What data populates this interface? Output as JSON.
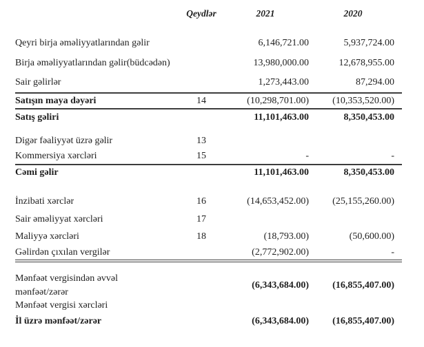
{
  "table": {
    "headers": {
      "notes": "Qeydlər",
      "y2021": "2021",
      "y2020": "2020"
    },
    "rows": [
      {
        "label": "Qeyri birja əməliyyatlarından gəlir",
        "note": "",
        "y2021": "6,146,721.00",
        "y2020": "5,937,724.00"
      },
      {
        "label": "Birja əməliyyatlarından gəlir(büdcədən)",
        "note": "",
        "y2021": "13,980,000.00",
        "y2020": "12,678,955.00"
      },
      {
        "label": "Sair gəlirlər",
        "note": "",
        "y2021": "1,273,443.00",
        "y2020": "87,294.00"
      },
      {
        "label": "Satışın maya dəyəri",
        "note": "14",
        "y2021": "(10,298,701.00)",
        "y2020": "(10,353,520.00)"
      },
      {
        "label": "Satış gəliri",
        "note": "",
        "y2021": "11,101,463.00",
        "y2020": "8,350,453.00"
      },
      {
        "label": "Digər fəaliyyət üzrə gəlir",
        "note": "13",
        "y2021": "",
        "y2020": ""
      },
      {
        "label": "Kommersiya xərcləri",
        "note": "15",
        "y2021": "-",
        "y2020": "-"
      },
      {
        "label": "Cəmi gəlir",
        "note": "",
        "y2021": "11,101,463.00",
        "y2020": "8,350,453.00"
      },
      {
        "label": "İnzibati xərclər",
        "note": "16",
        "y2021": "(14,653,452.00)",
        "y2020": "(25,155,260.00)"
      },
      {
        "label": "Sair əməliyyat xərcləri",
        "note": "17",
        "y2021": "",
        "y2020": ""
      },
      {
        "label": "Maliyyə xərcləri",
        "note": "18",
        "y2021": "(18,793.00)",
        "y2020": "(50,600.00)"
      },
      {
        "label": "Gəlirdən çıxılan vergilər",
        "note": "",
        "y2021": "(2,772,902.00)",
        "y2020": "-"
      },
      {
        "label": "Mənfəət vergisindən əvvəl mənfəət/zərər",
        "note": "",
        "y2021": "(6,343,684.00)",
        "y2020": "(16,855,407.00)"
      },
      {
        "label": "Mənfəət vergisi xərcləri",
        "note": "",
        "y2021": "",
        "y2020": ""
      },
      {
        "label": "İl üzrə mənfəət/zərər",
        "note": "",
        "y2021": "(6,343,684.00)",
        "y2020": "(16,855,407.00)"
      }
    ]
  }
}
